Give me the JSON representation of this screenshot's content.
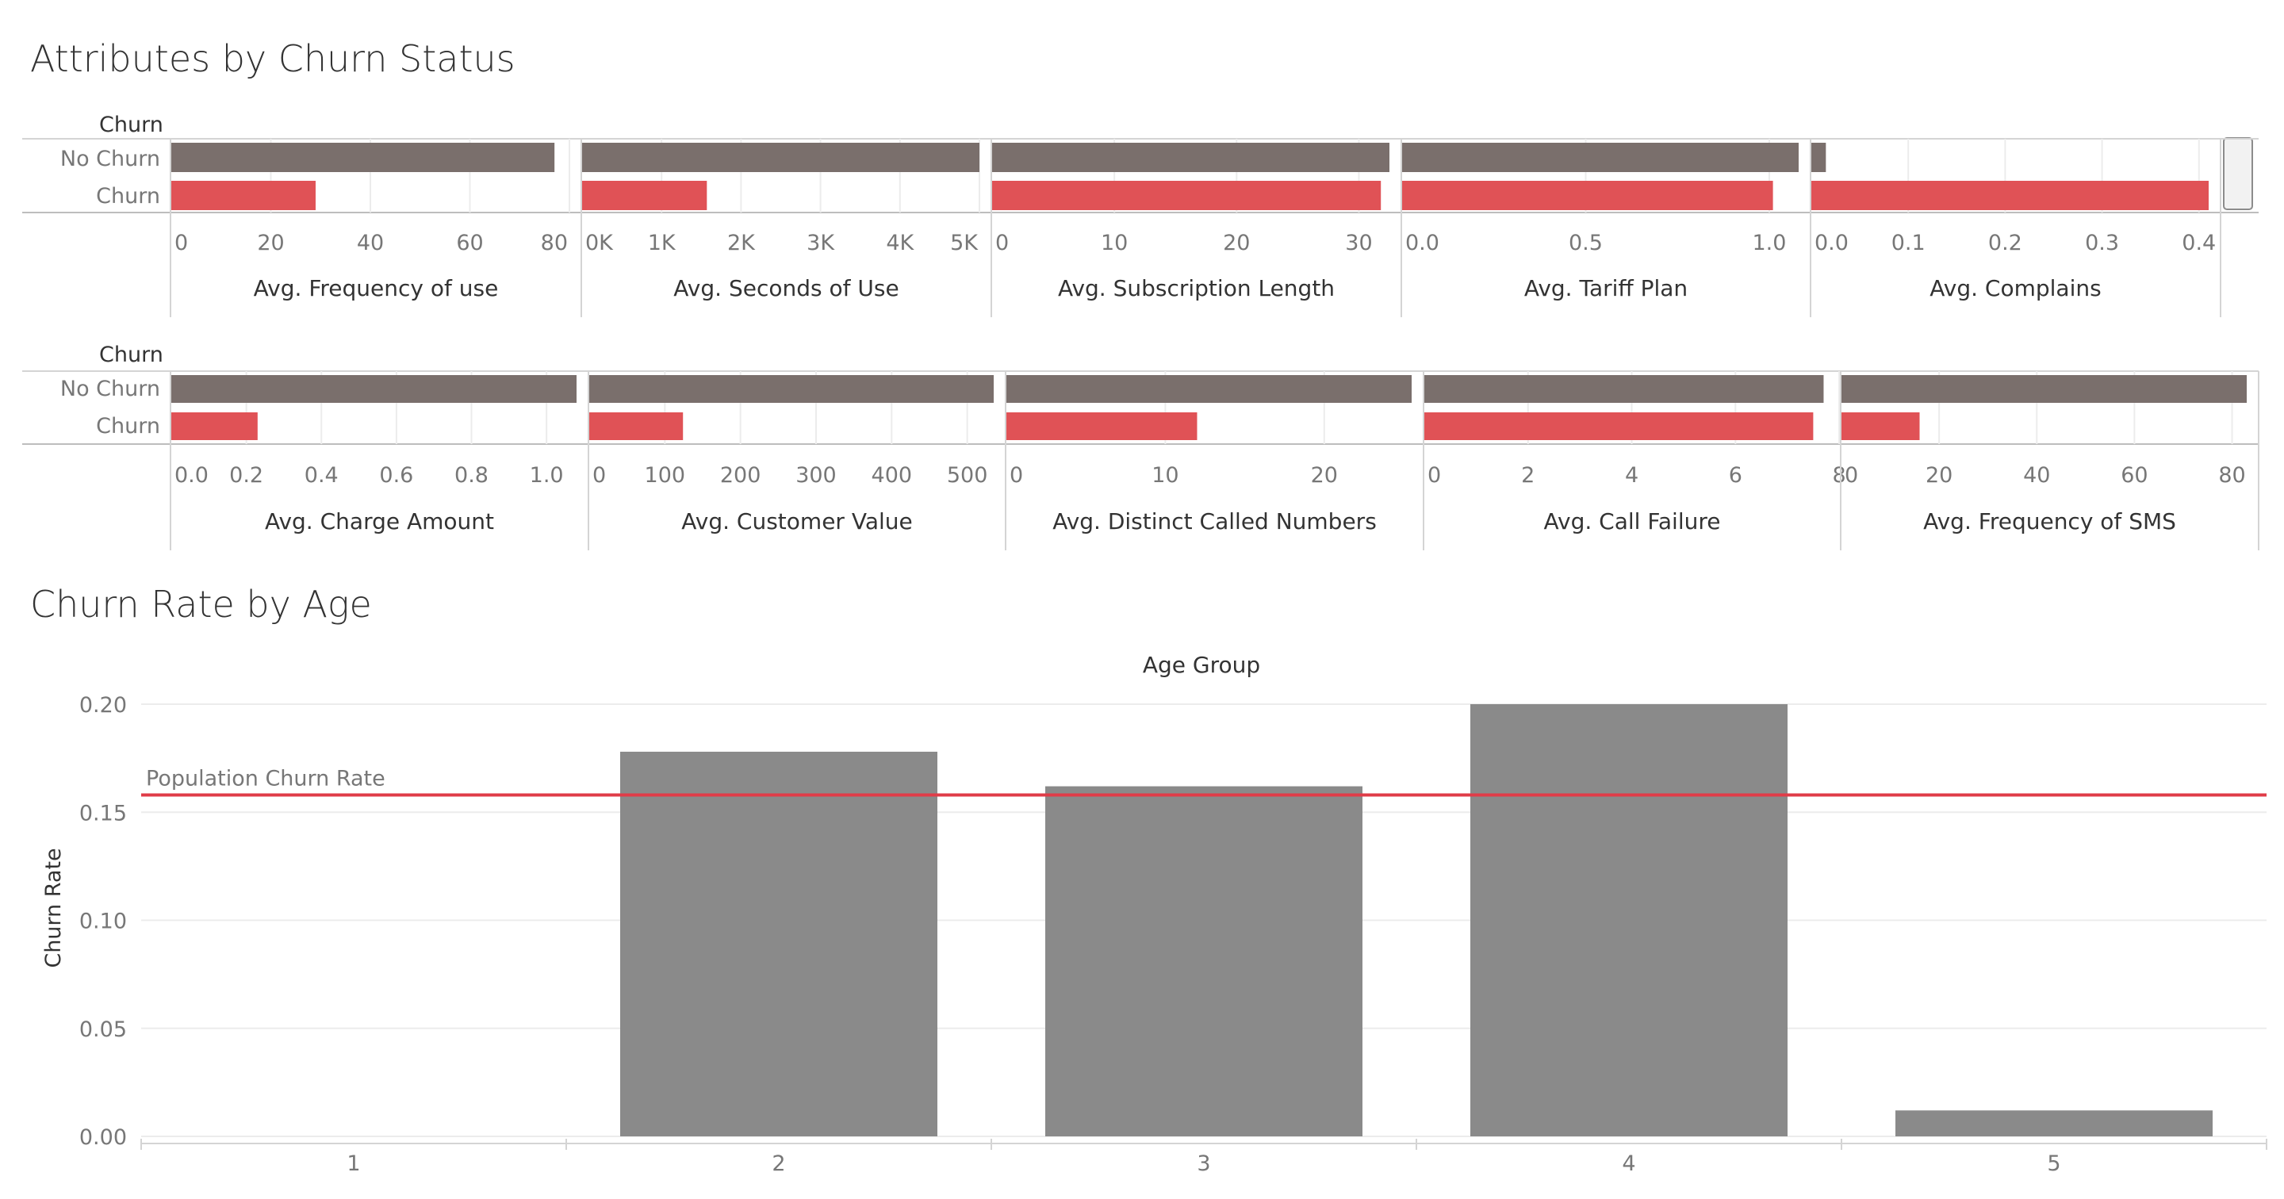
{
  "section_titles": {
    "attributes": "Attributes by Churn Status",
    "age": "Churn Rate by Age"
  },
  "colors": {
    "no_churn": "#7a6f6c",
    "churn": "#e05256",
    "age_bar": "#8a8a8a",
    "reference_line": "#e03c48",
    "axis_line": "#d4d4d4",
    "grid": "#ececec"
  },
  "chart_data": [
    {
      "type": "bar",
      "orientation": "horizontal",
      "row_header": "Churn",
      "categories": [
        "No Churn",
        "Churn"
      ],
      "panels": [
        {
          "measure": "Avg. Frequency of use",
          "values": [
            77,
            29
          ],
          "ticks": [
            "0",
            "20",
            "40",
            "60",
            "80"
          ],
          "tick_values": [
            0,
            20,
            40,
            60,
            80
          ],
          "xlim": [
            0,
            80
          ]
        },
        {
          "measure": "Avg. Seconds of Use",
          "values": [
            5000,
            1570
          ],
          "ticks": [
            "0K",
            "1K",
            "2K",
            "3K",
            "4K",
            "5K"
          ],
          "tick_values": [
            0,
            1000,
            2000,
            3000,
            4000,
            5000
          ],
          "xlim": [
            0,
            5000
          ]
        },
        {
          "measure": "Avg. Subscription  Length",
          "values": [
            32.5,
            31.8
          ],
          "ticks": [
            "0",
            "10",
            "20",
            "30"
          ],
          "tick_values": [
            0,
            10,
            20,
            30
          ],
          "xlim": [
            0,
            32.5
          ]
        },
        {
          "measure": "Avg. Tariff Plan",
          "values": [
            1.08,
            1.01
          ],
          "ticks": [
            "0.0",
            "0.5",
            "1.0"
          ],
          "tick_values": [
            0,
            0.5,
            1.0
          ],
          "xlim": [
            0,
            1.08
          ]
        },
        {
          "measure": "Avg. Complains",
          "values": [
            0.015,
            0.41
          ],
          "ticks": [
            "0.0",
            "0.1",
            "0.2",
            "0.3",
            "0.4"
          ],
          "tick_values": [
            0,
            0.1,
            0.2,
            0.3,
            0.4
          ],
          "xlim": [
            0,
            0.41
          ]
        }
      ]
    },
    {
      "type": "bar",
      "orientation": "horizontal",
      "row_header": "Churn",
      "categories": [
        "No Churn",
        "Churn"
      ],
      "panels": [
        {
          "measure": "Avg. Charge  Amount",
          "values": [
            1.08,
            0.23
          ],
          "ticks": [
            "0.0",
            "0.2",
            "0.4",
            "0.6",
            "0.8",
            "1.0"
          ],
          "tick_values": [
            0,
            0.2,
            0.4,
            0.6,
            0.8,
            1.0
          ],
          "xlim": [
            0,
            1.08
          ]
        },
        {
          "measure": "Avg. Customer Value",
          "values": [
            535,
            124
          ],
          "ticks": [
            "0",
            "100",
            "200",
            "300",
            "400",
            "500"
          ],
          "tick_values": [
            0,
            100,
            200,
            300,
            400,
            500
          ],
          "xlim": [
            0,
            535
          ]
        },
        {
          "measure": "Avg. Distinct Called Numbers",
          "values": [
            25.5,
            12
          ],
          "ticks": [
            "0",
            "10",
            "20"
          ],
          "tick_values": [
            0,
            10,
            20
          ],
          "xlim": [
            0,
            25.5
          ]
        },
        {
          "measure": "Avg. Call  Failure",
          "values": [
            7.7,
            7.5
          ],
          "ticks": [
            "0",
            "2",
            "4",
            "6",
            "8"
          ],
          "tick_values": [
            0,
            2,
            4,
            6,
            8
          ],
          "xlim": [
            0,
            7.8
          ]
        },
        {
          "measure": "Avg. Frequency of SMS",
          "values": [
            83,
            16
          ],
          "ticks": [
            "0",
            "20",
            "40",
            "60",
            "80"
          ],
          "tick_values": [
            0,
            20,
            40,
            60,
            80
          ],
          "xlim": [
            0,
            83
          ]
        }
      ]
    },
    {
      "type": "bar",
      "title": "Age Group",
      "categories": [
        "1",
        "2",
        "3",
        "4",
        "5"
      ],
      "values": [
        0.0,
        0.178,
        0.162,
        0.2,
        0.012
      ],
      "ylabel": "Churn Rate",
      "ylim": [
        0,
        0.2
      ],
      "yticks": [
        "0.00",
        "0.05",
        "0.10",
        "0.15",
        "0.20"
      ],
      "ytick_values": [
        0,
        0.05,
        0.1,
        0.15,
        0.2
      ],
      "reference_line": {
        "label": "Population Churn Rate",
        "value": 0.158
      }
    }
  ]
}
